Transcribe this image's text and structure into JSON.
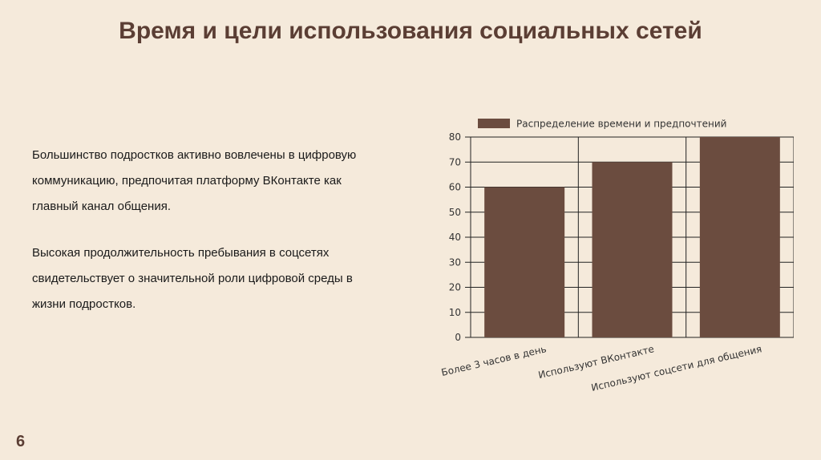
{
  "slide": {
    "title": "Время и цели использования социальных сетей",
    "paragraphs": [
      "Большинство подростков активно вовлечены в цифровую коммуникацию, предпочитая платформу ВКонтакте как главный канал общения.",
      "Высокая продолжительность пребывания в соцсетях свидетельствует о значительной роли цифровой среды в жизни подростков."
    ],
    "page_number": "6"
  },
  "chart_data": {
    "type": "bar",
    "categories": [
      "Более 3 часов в день",
      "Используют ВКонтакте",
      "Используют соцсети для общения"
    ],
    "series": [
      {
        "name": "Распределение времени и предпочтений",
        "values": [
          60,
          70,
          80
        ]
      }
    ],
    "ylim": [
      0,
      80
    ],
    "yticks": [
      0,
      10,
      20,
      30,
      40,
      50,
      60,
      70,
      80
    ],
    "legend": "top",
    "grid": true,
    "bar_color": "#6b4c3f"
  }
}
